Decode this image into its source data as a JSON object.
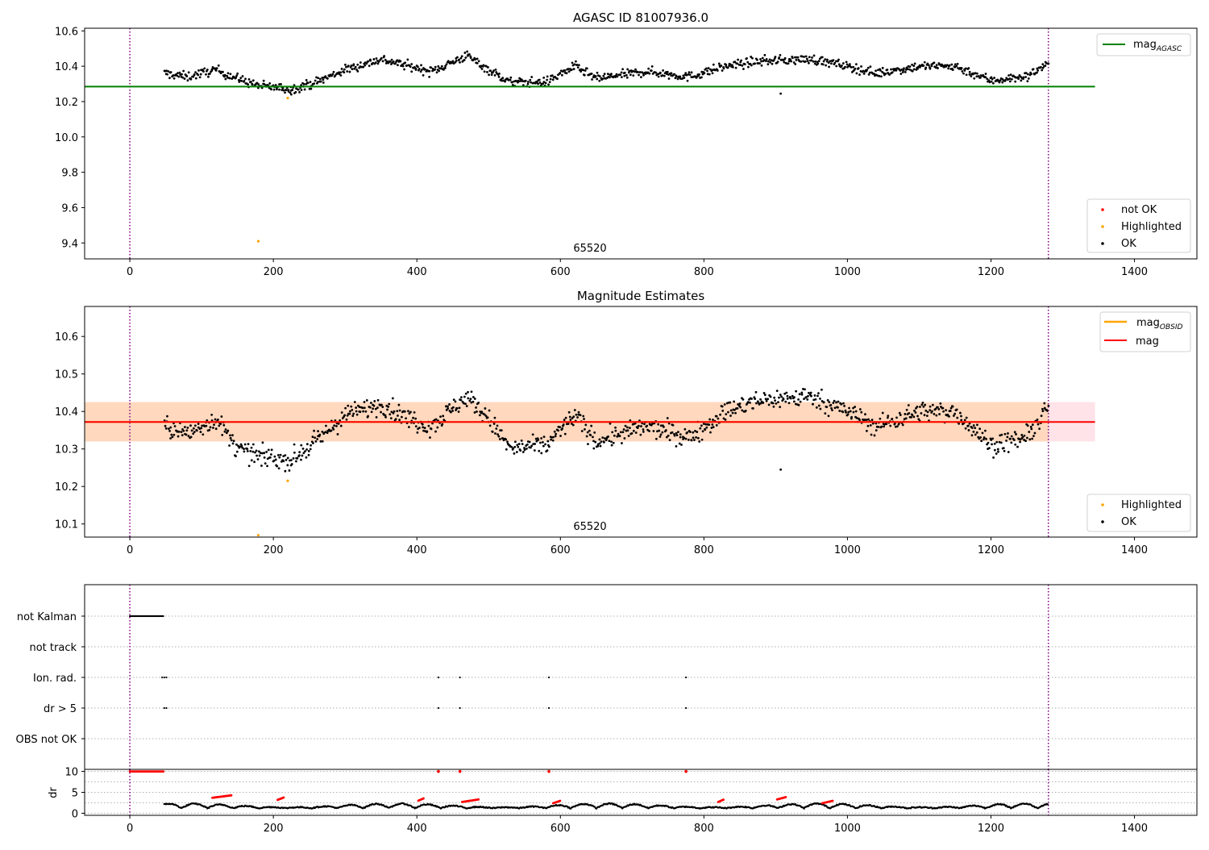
{
  "chart_data": [
    {
      "type": "scatter",
      "title": "AGASC ID 81007936.0",
      "xlabel": "",
      "ylabel": "",
      "xlim": [
        -63,
        1487
      ],
      "ylim": [
        9.31,
        10.615
      ],
      "x_ticks": [
        0,
        200,
        400,
        600,
        800,
        1000,
        1200,
        1400
      ],
      "y_ticks": [
        9.4,
        9.6,
        9.8,
        10.0,
        10.2,
        10.4,
        10.6
      ],
      "vlines": [
        0,
        1280
      ],
      "annotation": "65520",
      "legend_top": [
        {
          "label": "mag",
          "sub": "AGASC",
          "color": "#008000"
        }
      ],
      "legend_bottom": [
        {
          "label": "not OK",
          "color": "#ff0000"
        },
        {
          "label": "Highlighted",
          "color": "#ffa500"
        },
        {
          "label": "OK",
          "color": "#000000"
        }
      ],
      "hline": {
        "name": "mag AGASC",
        "y": 10.285,
        "x_range": [
          -63,
          1345
        ],
        "color": "#008000"
      },
      "series": [
        {
          "name": "OK",
          "color": "#000000",
          "kind": "noisy-light-curve",
          "x_range": [
            48,
            1280
          ],
          "points": 1050,
          "smooth": [
            [
              48,
              10.36
            ],
            [
              80,
              10.34
            ],
            [
              120,
              10.38
            ],
            [
              150,
              10.33
            ],
            [
              180,
              10.29
            ],
            [
              225,
              10.27
            ],
            [
              260,
              10.31
            ],
            [
              300,
              10.38
            ],
            [
              350,
              10.44
            ],
            [
              390,
              10.4
            ],
            [
              420,
              10.37
            ],
            [
              470,
              10.46
            ],
            [
              500,
              10.38
            ],
            [
              530,
              10.31
            ],
            [
              580,
              10.31
            ],
            [
              620,
              10.4
            ],
            [
              650,
              10.33
            ],
            [
              720,
              10.37
            ],
            [
              780,
              10.34
            ],
            [
              830,
              10.4
            ],
            [
              880,
              10.43
            ],
            [
              950,
              10.44
            ],
            [
              1000,
              10.4
            ],
            [
              1040,
              10.36
            ],
            [
              1100,
              10.4
            ],
            [
              1150,
              10.4
            ],
            [
              1200,
              10.32
            ],
            [
              1250,
              10.34
            ],
            [
              1280,
              10.42
            ]
          ],
          "noise": 0.025,
          "outliers": [
            [
              907,
              10.245
            ],
            [
              225,
              10.24
            ]
          ]
        },
        {
          "name": "Highlighted",
          "color": "#ffa500",
          "points_xy": [
            [
              179,
              9.41
            ],
            [
              220,
              10.22
            ]
          ]
        }
      ]
    },
    {
      "type": "scatter",
      "title": "Magnitude Estimates",
      "xlabel": "",
      "ylabel": "",
      "xlim": [
        -63,
        1487
      ],
      "ylim": [
        10.065,
        10.68
      ],
      "x_ticks": [
        0,
        200,
        400,
        600,
        800,
        1000,
        1200,
        1400
      ],
      "y_ticks": [
        10.1,
        10.2,
        10.3,
        10.4,
        10.5,
        10.6
      ],
      "vlines": [
        0,
        1280
      ],
      "annotation": "65520",
      "legend_top": [
        {
          "label": "mag",
          "sub": "OBSID",
          "color": "#ffa500"
        },
        {
          "label": "mag",
          "sub": "",
          "color": "#ff0000"
        }
      ],
      "legend_bottom": [
        {
          "label": "Highlighted",
          "color": "#ffa500"
        },
        {
          "label": "OK",
          "color": "#000000"
        }
      ],
      "band": {
        "x_range": [
          -63,
          1345
        ],
        "y_low": 10.32,
        "y_high": 10.425,
        "x_obs_end": 1280
      },
      "hline": {
        "name": "mag",
        "y": 10.372,
        "x_range": [
          -63,
          1345
        ],
        "color": "#ff0000"
      },
      "obsid_line": {
        "y": 10.372,
        "x_range": [
          -63,
          1280
        ],
        "color": "#ffa500"
      },
      "series": [
        {
          "name": "OK",
          "color": "#000000",
          "kind": "noisy-light-curve",
          "x_range": [
            48,
            1280
          ],
          "points": 1050,
          "smooth": [
            [
              48,
              10.36
            ],
            [
              80,
              10.34
            ],
            [
              120,
              10.38
            ],
            [
              150,
              10.3
            ],
            [
              180,
              10.28
            ],
            [
              225,
              10.27
            ],
            [
              260,
              10.32
            ],
            [
              300,
              10.39
            ],
            [
              350,
              10.42
            ],
            [
              390,
              10.38
            ],
            [
              420,
              10.36
            ],
            [
              470,
              10.44
            ],
            [
              500,
              10.38
            ],
            [
              530,
              10.3
            ],
            [
              580,
              10.31
            ],
            [
              620,
              10.39
            ],
            [
              650,
              10.32
            ],
            [
              720,
              10.36
            ],
            [
              780,
              10.33
            ],
            [
              830,
              10.4
            ],
            [
              880,
              10.43
            ],
            [
              950,
              10.44
            ],
            [
              1000,
              10.4
            ],
            [
              1040,
              10.36
            ],
            [
              1100,
              10.4
            ],
            [
              1150,
              10.4
            ],
            [
              1200,
              10.31
            ],
            [
              1250,
              10.33
            ],
            [
              1280,
              10.41
            ]
          ],
          "noise": 0.025,
          "outliers": [
            [
              907,
              10.245
            ]
          ]
        },
        {
          "name": "Highlighted",
          "color": "#ffa500",
          "points_xy": [
            [
              179,
              10.07
            ],
            [
              220,
              10.215
            ]
          ]
        }
      ]
    },
    {
      "type": "scatter",
      "title": "",
      "xlim": [
        -63,
        1487
      ],
      "x_ticks": [
        0,
        200,
        400,
        600,
        800,
        1000,
        1200,
        1400
      ],
      "vlines": [
        0,
        1280
      ],
      "flag_rows": [
        "not Kalman",
        "not track",
        "Ion. rad.",
        "dr > 5",
        "OBS not OK"
      ],
      "flags": {
        "not Kalman": {
          "x_range": [
            0,
            47
          ]
        },
        "not track": {
          "x": []
        },
        "Ion. rad.": {
          "x": [
            45,
            48,
            51,
            430,
            460,
            584,
            775
          ]
        },
        "dr > 5": {
          "x": [
            48,
            51,
            430,
            460,
            584,
            775
          ]
        },
        "OBS not OK": {
          "x": []
        }
      }
    },
    {
      "type": "scatter",
      "title": "",
      "xlabel": "",
      "ylabel": "dr",
      "xlim": [
        -63,
        1487
      ],
      "ylim": [
        -0.5,
        10.5
      ],
      "x_ticks": [
        0,
        200,
        400,
        600,
        800,
        1000,
        1200,
        1400
      ],
      "y_ticks": [
        0,
        5,
        10
      ],
      "vlines": [
        0,
        1280
      ],
      "series": [
        {
          "name": "dr OK",
          "color": "#000000",
          "kind": "dr-curve",
          "x_range": [
            48,
            1280
          ]
        },
        {
          "name": "dr not OK",
          "color": "#ff0000",
          "segments": [
            [
              0,
              47,
              10
            ],
            [
              115,
              142,
              4
            ],
            [
              206,
              215,
              3.5
            ],
            [
              402,
              410,
              3.3
            ],
            [
              463,
              486,
              3.0
            ],
            [
              590,
              600,
              2.7
            ],
            [
              820,
              828,
              3.0
            ],
            [
              902,
              915,
              3.6
            ],
            [
              965,
              980,
              2.7
            ]
          ],
          "spikes": [
            [
              430,
              10
            ],
            [
              460,
              10
            ],
            [
              584,
              10
            ],
            [
              775,
              10
            ]
          ]
        }
      ]
    }
  ]
}
